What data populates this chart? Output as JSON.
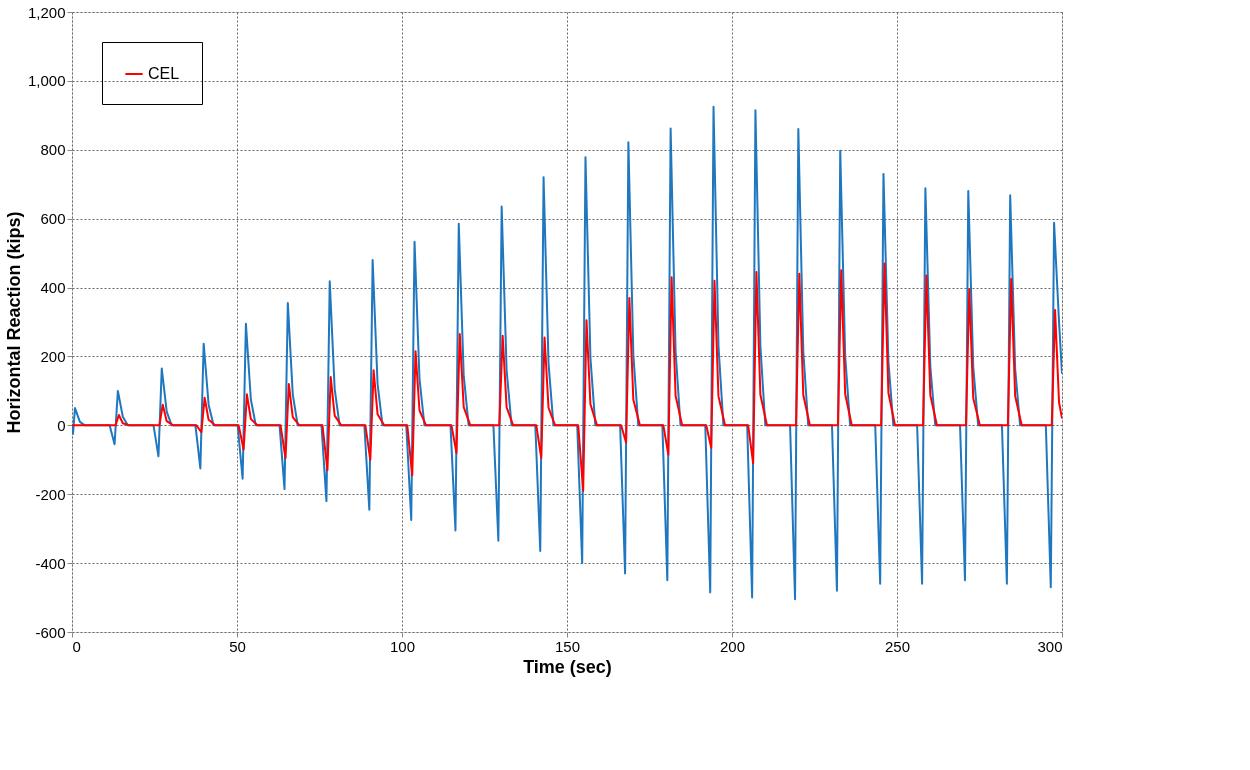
{
  "chart_data": {
    "type": "line",
    "xlabel": "Time (sec)",
    "ylabel": "Horizontal Reaction (kips)",
    "xlim": [
      0,
      300
    ],
    "xticks": [
      0,
      50,
      100,
      150,
      200,
      250,
      300
    ],
    "ylim": [
      -600,
      1200
    ],
    "yticks": [
      -600,
      -400,
      -200,
      0,
      200,
      400,
      600,
      800,
      {
        "value": 1000,
        "label": "1,000"
      },
      {
        "value": 1200,
        "label": "1,200"
      }
    ],
    "grid": true,
    "legend": "top left",
    "line_style": "solid",
    "marker": "none",
    "series": [
      {
        "color": "#1f77c0",
        "x": [
          0,
          0.3,
          0.9,
          2.4,
          3.9,
          11.4,
          12.9,
          13.9,
          15.4,
          16.9,
          24.7,
          26.2,
          27.2,
          28.7,
          30.2,
          37.4,
          38.9,
          39.9,
          41.4,
          42.9,
          50.2,
          51.7,
          52.7,
          54.2,
          55.7,
          62.9,
          64.4,
          65.4,
          66.9,
          68.4,
          75.6,
          77.1,
          78.1,
          79.6,
          81.1,
          88.6,
          90.1,
          91.1,
          92.6,
          94.1,
          101.3,
          102.8,
          103.8,
          105.3,
          106.8,
          114.7,
          116.2,
          117.2,
          118.7,
          120.2,
          127.7,
          129.2,
          130.2,
          131.7,
          133.2,
          140.4,
          141.9,
          142.9,
          144.4,
          145.9,
          153.1,
          154.6,
          155.6,
          157.1,
          158.6,
          166.1,
          167.6,
          168.6,
          170.1,
          171.6,
          178.9,
          180.4,
          181.4,
          182.9,
          184.4,
          191.9,
          193.4,
          194.4,
          195.9,
          197.4,
          204.6,
          206.1,
          207.1,
          208.6,
          210.1,
          217.6,
          219.1,
          220.1,
          221.6,
          223.1,
          230.3,
          231.8,
          232.8,
          234.3,
          235.8,
          243.4,
          244.9,
          245.9,
          247.4,
          248.9,
          256.1,
          257.6,
          258.6,
          260.1,
          261.6,
          269.1,
          270.6,
          271.6,
          273.1,
          274.6,
          281.8,
          283.3,
          284.3,
          285.8,
          287.3,
          295.1,
          296.6,
          297.6,
          299.1,
          300
        ],
        "values": [
          0,
          -25,
          50,
          10,
          0,
          0,
          -55,
          100,
          25,
          0,
          0,
          -90,
          165,
          40,
          0,
          0,
          -125,
          237,
          60,
          0,
          0,
          -155,
          295,
          75,
          0,
          0,
          -185,
          355,
          90,
          0,
          0,
          -220,
          418,
          105,
          0,
          0,
          -245,
          480,
          120,
          0,
          0,
          -275,
          533,
          135,
          0,
          0,
          -305,
          585,
          145,
          0,
          0,
          -335,
          635,
          160,
          0,
          0,
          -365,
          720,
          180,
          0,
          0,
          -400,
          778,
          195,
          0,
          0,
          -430,
          822,
          205,
          0,
          0,
          -450,
          862,
          215,
          0,
          0,
          -485,
          925,
          230,
          0,
          0,
          -500,
          915,
          230,
          0,
          0,
          -505,
          860,
          215,
          0,
          0,
          -480,
          797,
          200,
          0,
          0,
          -460,
          730,
          185,
          0,
          0,
          -460,
          688,
          170,
          0,
          0,
          -450,
          680,
          170,
          0,
          0,
          -460,
          668,
          165,
          0,
          0,
          -470,
          588,
          300,
          150
        ]
      },
      {
        "name": "CEL",
        "color": "#ff0000",
        "x": [
          0,
          11.7,
          13.2,
          14.2,
          15.4,
          17.4,
          25.0,
          26.5,
          27.5,
          28.7,
          30.7,
          37.7,
          39.2,
          40.2,
          41.4,
          43.4,
          50.5,
          52.0,
          53.0,
          54.2,
          56.2,
          63.2,
          64.7,
          65.7,
          66.9,
          68.9,
          75.9,
          77.4,
          78.4,
          79.6,
          81.6,
          88.9,
          90.4,
          91.4,
          92.6,
          94.6,
          101.6,
          103.1,
          104.1,
          105.3,
          107.3,
          115.0,
          116.5,
          117.5,
          118.7,
          120.7,
          128.0,
          129.5,
          130.5,
          131.7,
          133.7,
          140.7,
          142.2,
          143.2,
          144.4,
          146.4,
          153.4,
          154.9,
          155.9,
          157.1,
          159.1,
          166.4,
          167.9,
          168.9,
          170.1,
          172.1,
          179.2,
          180.7,
          181.7,
          182.9,
          184.9,
          192.2,
          193.7,
          194.7,
          195.9,
          197.9,
          204.9,
          206.4,
          207.4,
          208.6,
          210.6,
          217.9,
          219.4,
          220.4,
          221.6,
          223.6,
          230.6,
          232.1,
          233.1,
          234.3,
          236.3,
          243.7,
          245.2,
          246.2,
          247.4,
          249.4,
          256.4,
          257.9,
          258.9,
          260.1,
          262.1,
          269.4,
          270.9,
          271.9,
          273.1,
          275.1,
          282.1,
          283.6,
          284.6,
          285.8,
          287.8,
          295.4,
          296.9,
          297.9,
          299.1,
          300
        ],
        "values": [
          0,
          0,
          0,
          30,
          6,
          0,
          0,
          0,
          60,
          12,
          0,
          0,
          -20,
          80,
          16,
          0,
          0,
          -70,
          90,
          18,
          0,
          0,
          -95,
          120,
          24,
          0,
          0,
          -130,
          140,
          28,
          0,
          0,
          -100,
          160,
          32,
          0,
          0,
          -145,
          215,
          43,
          0,
          0,
          -80,
          265,
          53,
          0,
          0,
          0,
          260,
          52,
          0,
          0,
          -95,
          255,
          51,
          0,
          0,
          -190,
          305,
          61,
          0,
          0,
          -50,
          370,
          74,
          0,
          0,
          -85,
          430,
          86,
          0,
          0,
          -65,
          420,
          84,
          0,
          0,
          -110,
          445,
          89,
          0,
          0,
          0,
          440,
          88,
          0,
          0,
          0,
          450,
          90,
          0,
          0,
          0,
          470,
          94,
          0,
          0,
          0,
          435,
          87,
          0,
          0,
          0,
          395,
          79,
          0,
          0,
          0,
          425,
          85,
          0,
          0,
          0,
          335,
          67,
          20
        ]
      }
    ]
  }
}
